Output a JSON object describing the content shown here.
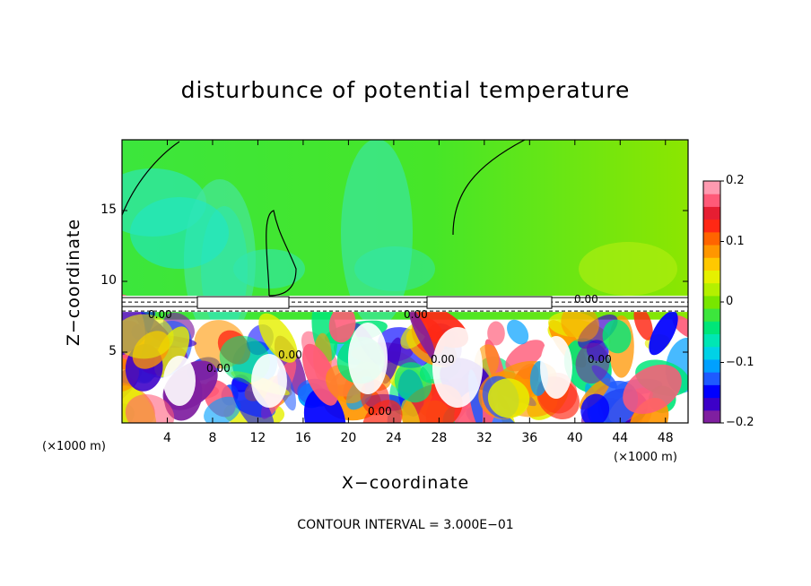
{
  "chart_data": {
    "type": "heatmap",
    "title": "disturbunce of potential temperature",
    "xlabel": "X−coordinate",
    "ylabel": "Z−coordinate",
    "x_unit_left": "(×1000 m)",
    "x_unit_right": "(×1000 m)",
    "xlim": [
      0,
      50
    ],
    "ylim": [
      0,
      20
    ],
    "xticks": [
      4,
      8,
      12,
      16,
      20,
      24,
      28,
      32,
      36,
      40,
      44,
      48
    ],
    "yticks": [
      5,
      10,
      15
    ],
    "colorbar": {
      "range": [
        -0.2,
        0.2
      ],
      "ticks": [
        "0.2",
        "0.1",
        "0",
        "−0.1",
        "−0.2"
      ],
      "colors": [
        "#7f1fa0",
        "#3c00c8",
        "#0000ff",
        "#1e5aff",
        "#00a0ff",
        "#00d2e6",
        "#00e6b4",
        "#00e678",
        "#3ce63c",
        "#78e600",
        "#b4f000",
        "#e6f000",
        "#ffc800",
        "#ff9600",
        "#ff6400",
        "#ff2814",
        "#e61e32",
        "#ff5a78",
        "#ff9ab0"
      ]
    },
    "contour_labels": [
      "0.00",
      "0.00",
      "0.00",
      "0.00",
      "0.00",
      "0.00",
      "0.00",
      "0.00"
    ],
    "contour_interval": "CONTOUR INTERVAL = 3.000E−01"
  }
}
